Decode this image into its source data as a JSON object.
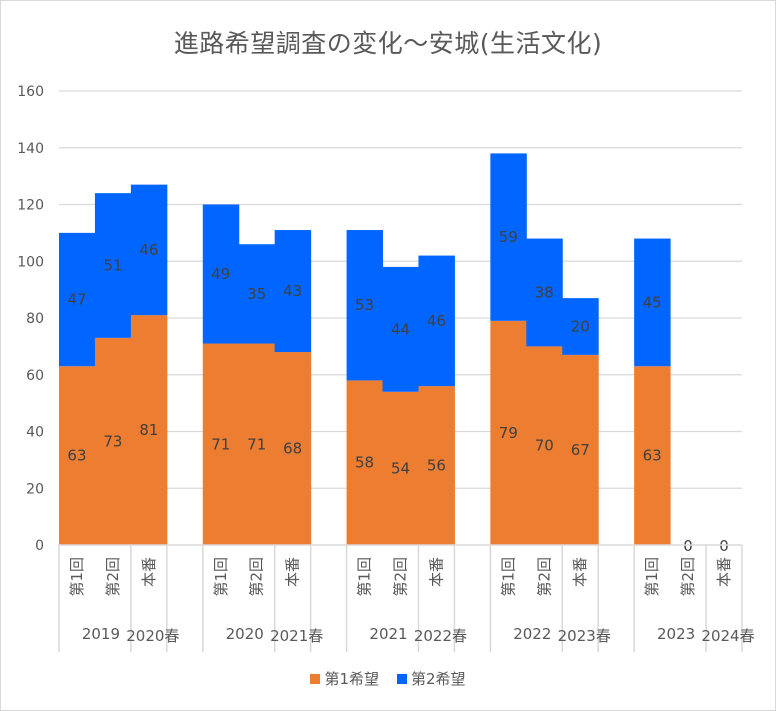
{
  "chart_data": {
    "type": "bar",
    "stacked": true,
    "title": "進路希望調査の変化～安城(生活文化)",
    "xlabel": "",
    "ylabel": "",
    "ylim": [
      0,
      160
    ],
    "yticks": [
      0,
      20,
      40,
      60,
      80,
      100,
      120,
      140,
      160
    ],
    "grid": true,
    "legend_position": "bottom",
    "groups": [
      {
        "label_a": "2019",
        "label_b": "2020春",
        "categories": [
          "第1回",
          "第2回",
          "本番"
        ]
      },
      {
        "label_a": "2020",
        "label_b": "2021春",
        "categories": [
          "第1回",
          "第2回",
          "本番"
        ]
      },
      {
        "label_a": "2021",
        "label_b": "2022春",
        "categories": [
          "第1回",
          "第2回",
          "本番"
        ]
      },
      {
        "label_a": "2022",
        "label_b": "2023春",
        "categories": [
          "第1回",
          "第2回",
          "本番"
        ]
      },
      {
        "label_a": "2023",
        "label_b": "2024春",
        "categories": [
          "第1回",
          "第2回",
          "本番"
        ]
      }
    ],
    "series": [
      {
        "name": "第1希望",
        "color": "#ed7d31",
        "values": [
          [
            63,
            73,
            81
          ],
          [
            71,
            71,
            68
          ],
          [
            58,
            54,
            56
          ],
          [
            79,
            70,
            67
          ],
          [
            63,
            null,
            null
          ]
        ]
      },
      {
        "name": "第2希望",
        "color": "#0066ff",
        "values": [
          [
            47,
            51,
            46
          ],
          [
            49,
            35,
            43
          ],
          [
            53,
            44,
            46
          ],
          [
            59,
            38,
            20
          ],
          [
            45,
            null,
            null
          ]
        ]
      }
    ],
    "zero_labels": [
      "0",
      "0"
    ]
  }
}
